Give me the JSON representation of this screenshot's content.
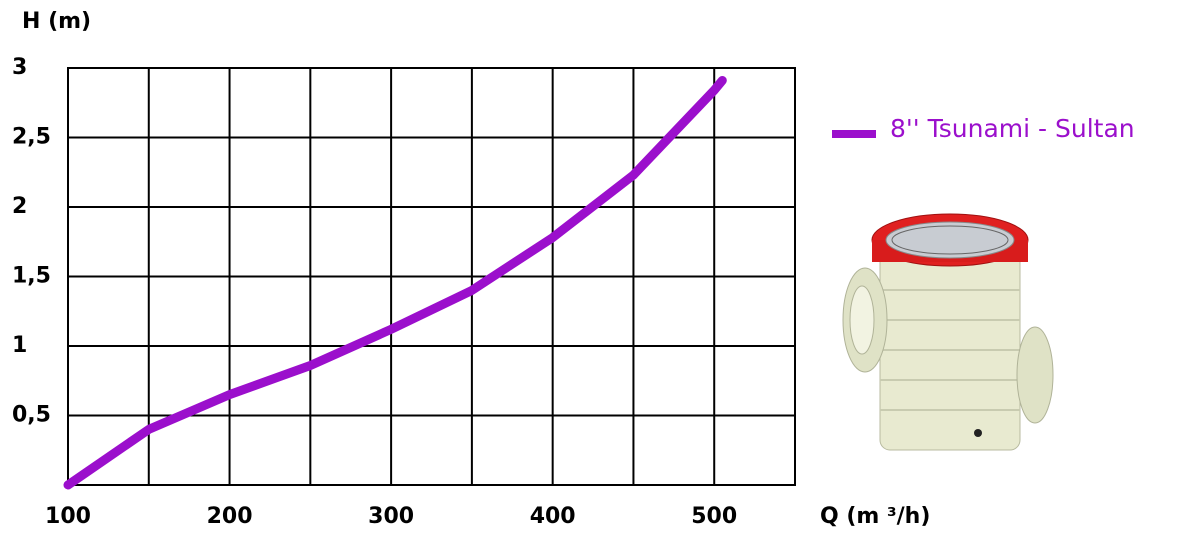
{
  "chart_data": {
    "type": "line",
    "x_label": "Q (m ³/h)",
    "y_label": "H (m)",
    "x": [
      100,
      150,
      200,
      250,
      300,
      350,
      400,
      450,
      500,
      505
    ],
    "series": [
      {
        "name": "8'' Tsunami - Sultan",
        "color": "#9b0fcc",
        "values": [
          0,
          0.4,
          0.65,
          0.86,
          1.12,
          1.4,
          1.78,
          2.23,
          2.84,
          2.91
        ]
      }
    ],
    "xlim": [
      100,
      550
    ],
    "xticks": [
      100,
      200,
      300,
      400,
      500
    ],
    "xminorticks": [
      150,
      250,
      350,
      450,
      550
    ],
    "ylim": [
      0,
      3
    ],
    "yticks": [
      {
        "value": 0.5,
        "label": "0,5"
      },
      1,
      {
        "value": 1.5,
        "label": "1,5"
      },
      2,
      {
        "value": 2.5,
        "label": "2,5"
      },
      3
    ],
    "grid": true,
    "legend": "upper right"
  }
}
